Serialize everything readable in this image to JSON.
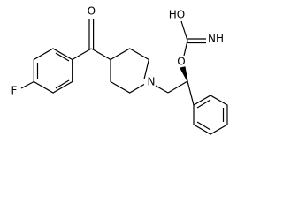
{
  "labels": {
    "carbonyl_oxygen": "O",
    "fluorine": "F",
    "amine_nitrogen": "N",
    "ester_oxygen": "O",
    "hydroxyl": "HO",
    "imine": "NH"
  }
}
